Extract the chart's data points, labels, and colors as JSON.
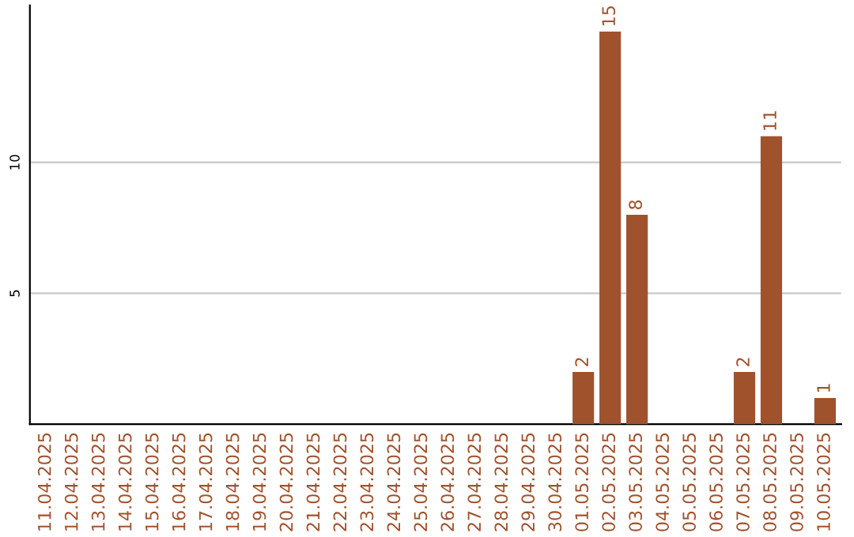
{
  "chart_data": {
    "type": "bar",
    "categories": [
      "11.04.2025",
      "12.04.2025",
      "13.04.2025",
      "14.04.2025",
      "15.04.2025",
      "16.04.2025",
      "17.04.2025",
      "18.04.2025",
      "19.04.2025",
      "20.04.2025",
      "21.04.2025",
      "22.04.2025",
      "23.04.2025",
      "24.04.2025",
      "25.04.2025",
      "26.04.2025",
      "27.04.2025",
      "28.04.2025",
      "29.04.2025",
      "30.04.2025",
      "01.05.2025",
      "02.05.2025",
      "03.05.2025",
      "04.05.2025",
      "05.05.2025",
      "06.05.2025",
      "07.05.2025",
      "08.05.2025",
      "09.05.2025",
      "10.05.2025"
    ],
    "values": [
      0,
      0,
      0,
      0,
      0,
      0,
      0,
      0,
      0,
      0,
      0,
      0,
      0,
      0,
      0,
      0,
      0,
      0,
      0,
      0,
      2,
      15,
      8,
      0,
      0,
      0,
      2,
      11,
      0,
      1
    ],
    "value_labels": [
      null,
      null,
      null,
      null,
      null,
      null,
      null,
      null,
      null,
      null,
      null,
      null,
      null,
      null,
      null,
      null,
      null,
      null,
      null,
      null,
      "2",
      "15",
      "8",
      null,
      null,
      null,
      "2",
      "11",
      null,
      "1"
    ],
    "color": "#a0522d",
    "ylim": [
      0,
      16
    ],
    "yticks": [
      5,
      10
    ],
    "grid": "y"
  }
}
